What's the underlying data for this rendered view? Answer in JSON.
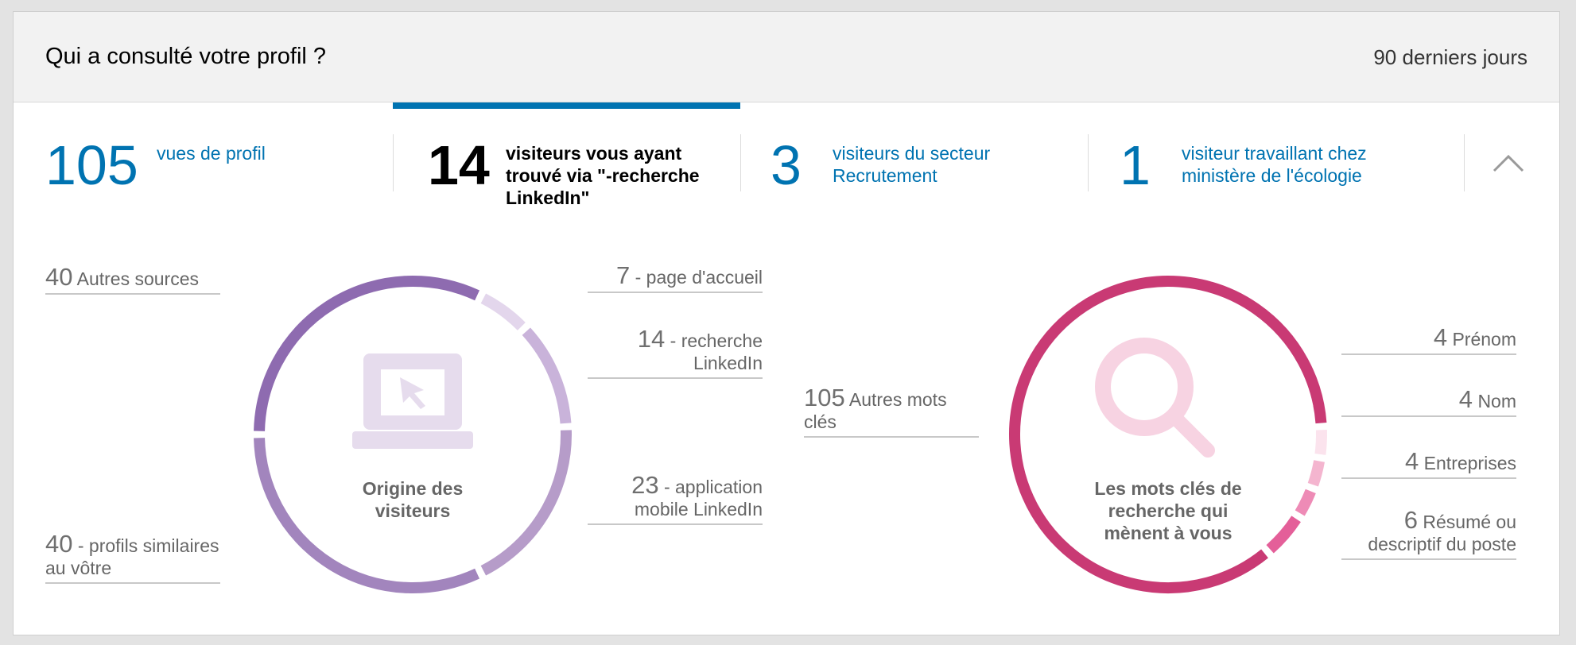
{
  "header": {
    "title": "Qui a consulté votre profil ?",
    "range": "90 derniers jours"
  },
  "tabs": [
    {
      "value": "105",
      "label": "vues de profil"
    },
    {
      "value": "14",
      "label": "visiteurs vous ayant trouvé via \"-recherche LinkedIn\""
    },
    {
      "value": "3",
      "label": "visiteurs du secteur Recrutement"
    },
    {
      "value": "1",
      "label": "visiteur travaillant chez ministère de l'écologie"
    }
  ],
  "active_tab_index": 1,
  "colors": {
    "accent": "#0073b1",
    "origin_ring": "#8e6bb0",
    "keywords_ring": "#c93a74"
  },
  "icons": {
    "collapse": "chevron-up-icon",
    "origin": "laptop-cursor-icon",
    "keywords": "magnifier-icon"
  },
  "origin": {
    "title": "Origine des visiteurs",
    "sources": [
      {
        "value": "40",
        "label": "Autres sources"
      },
      {
        "value": "40",
        "label": "- profils similaires au vôtre"
      },
      {
        "value": "7",
        "label": "- page d'accueil"
      },
      {
        "value": "14",
        "label": "- recherche LinkedIn"
      },
      {
        "value": "23",
        "label": "- application mobile LinkedIn"
      }
    ]
  },
  "keywords": {
    "title": "Les mots clés de recherche qui mènent à vous",
    "items": [
      {
        "value": "105",
        "label": "Autres mots clés"
      },
      {
        "value": "4",
        "label": "Prénom"
      },
      {
        "value": "4",
        "label": "Nom"
      },
      {
        "value": "4",
        "label": "Entreprises"
      },
      {
        "value": "6",
        "label": "Résumé ou descriptif du poste"
      }
    ]
  }
}
